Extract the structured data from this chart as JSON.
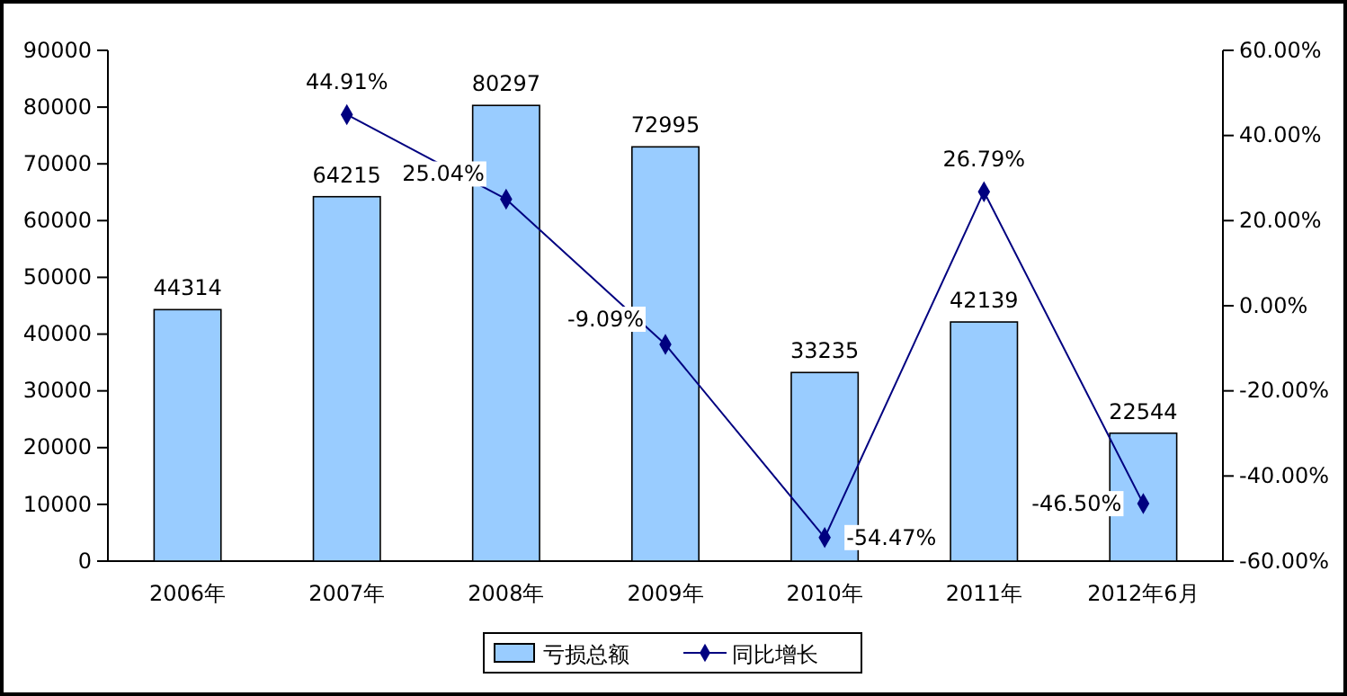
{
  "chart_data": {
    "type": "bar",
    "categories": [
      "2006年",
      "2007年",
      "2008年",
      "2009年",
      "2010年",
      "2011年",
      "2012年6月"
    ],
    "series": [
      {
        "name": "亏损总额",
        "color": "#99ccff",
        "values": [
          44314,
          64215,
          80297,
          72995,
          33235,
          42139,
          22544
        ]
      },
      {
        "name": "同比增长",
        "type": "line",
        "axis": "y2",
        "color": "#000080",
        "marker": "diamond",
        "values": [
          null,
          44.91,
          25.04,
          -9.09,
          -54.47,
          26.79,
          -46.5
        ],
        "value_labels": [
          null,
          "44.91%",
          "25.04%",
          "-9.09%",
          "-54.47%",
          "26.79%",
          "-46.50%"
        ]
      }
    ],
    "ylim": [
      0,
      90000
    ],
    "yticks": [
      0,
      10000,
      20000,
      30000,
      40000,
      50000,
      60000,
      70000,
      80000,
      90000
    ],
    "y2lim": [
      -60,
      60
    ],
    "y2ticks": [
      {
        "value": -60,
        "label": "-60.00%"
      },
      {
        "value": -40,
        "label": "-40.00%"
      },
      {
        "value": -20,
        "label": "-20.00%"
      },
      {
        "value": 0,
        "label": "0.00%"
      },
      {
        "value": 20,
        "label": "20.00%"
      },
      {
        "value": 40,
        "label": "40.00%"
      },
      {
        "value": 60,
        "label": "60.00%"
      }
    ],
    "data_labels": true,
    "grid": false,
    "legend": "bottom"
  }
}
